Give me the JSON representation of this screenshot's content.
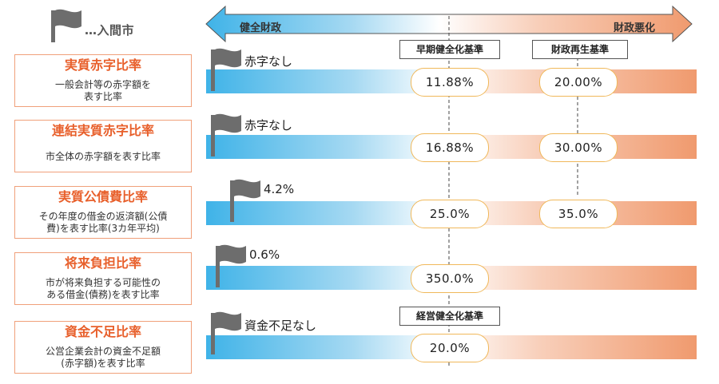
{
  "legend": {
    "label": "…入間市"
  },
  "scale": {
    "left_label": "健全財政",
    "right_label": "財政悪化"
  },
  "thresholds": {
    "early": "早期健全化基準",
    "rebuild": "財政再生基準",
    "business": "経営健全化基準"
  },
  "indicators": [
    {
      "title": "実質赤字比率",
      "desc": "一般会計等の赤字額を\n表す比率",
      "value": "赤字なし",
      "early": "11.88%",
      "rebuild": "20.00%"
    },
    {
      "title": "連結実質赤字比率",
      "desc": "市全体の赤字額を表す比率",
      "value": "赤字なし",
      "early": "16.88%",
      "rebuild": "30.00%"
    },
    {
      "title": "実質公債費比率",
      "desc": "その年度の借金の返済額(公債\n費)を表す比率(3カ年平均)",
      "value": "4.2%",
      "early": "25.0%",
      "rebuild": "35.0%"
    },
    {
      "title": "将来負担比率",
      "desc": "市が将来負担する可能性の\nある借金(債務)を表す比率",
      "value": "0.6%",
      "early": "350.0%",
      "rebuild": ""
    },
    {
      "title": "資金不足比率",
      "desc": "公営企業会計の資金不足額\n(赤字額)を表す比率",
      "value": "資金不足なし",
      "early": "20.0%",
      "rebuild": ""
    }
  ],
  "colors": {
    "blue": "#3fb3e8",
    "orange": "#f09a6e",
    "flag": "#6d6d6d",
    "pill_border": "#f0b85a"
  }
}
